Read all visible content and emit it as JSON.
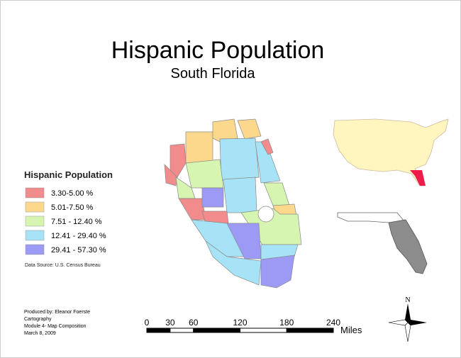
{
  "title": "Hispanic Population",
  "subtitle": "South Florida",
  "legend": {
    "title": "Hispanic Population",
    "items": [
      {
        "label": "3.30-5.00 %",
        "color": "#f28b8b"
      },
      {
        "label": "5.01-7.50 %",
        "color": "#fcd88c"
      },
      {
        "label": "7.51 - 12.40 %",
        "color": "#d6f5b0"
      },
      {
        "label": "12.41 - 29.40 %",
        "color": "#a6e3f7"
      },
      {
        "label": "29.41 - 57.30 %",
        "color": "#9c9af4"
      }
    ]
  },
  "data_source": "Data Source: U.S. Census Bureau",
  "credits": [
    "Produced by:  Eleanor Foerste",
    "Cartography",
    "Module 4- Map Composition",
    "March 8, 2009"
  ],
  "scale_bar": {
    "ticks": [
      0,
      30,
      60,
      120,
      180,
      240
    ],
    "unit": "Miles"
  },
  "north": "N"
}
